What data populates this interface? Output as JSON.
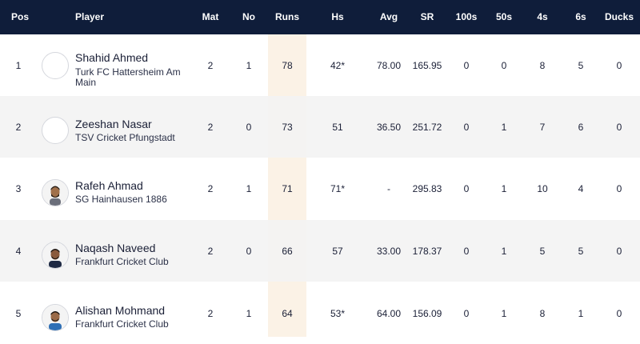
{
  "headers": {
    "pos": "Pos",
    "player": "Player",
    "mat": "Mat",
    "no": "No",
    "runs": "Runs",
    "hs": "Hs",
    "avg": "Avg",
    "sr": "SR",
    "hundreds": "100s",
    "fifties": "50s",
    "fours": "4s",
    "sixes": "6s",
    "ducks": "Ducks"
  },
  "rows": [
    {
      "pos": "1",
      "name": "Shahid Ahmed",
      "team": "Turk FC Hattersheim Am Main",
      "mat": "2",
      "no": "1",
      "runs": "78",
      "hs": "42*",
      "avg": "78.00",
      "sr": "165.95",
      "hundreds": "0",
      "fifties": "0",
      "fours": "8",
      "sixes": "5",
      "ducks": "0",
      "avatar": "placeholder-avatar-icon"
    },
    {
      "pos": "2",
      "name": "Zeeshan Nasar",
      "team": "TSV Cricket Pfungstadt",
      "mat": "2",
      "no": "0",
      "runs": "73",
      "hs": "51",
      "avg": "36.50",
      "sr": "251.72",
      "hundreds": "0",
      "fifties": "1",
      "fours": "7",
      "sixes": "6",
      "ducks": "0",
      "avatar": "placeholder-avatar-icon"
    },
    {
      "pos": "3",
      "name": "Rafeh Ahmad",
      "team": "SG Hainhausen 1886",
      "mat": "2",
      "no": "1",
      "runs": "71",
      "hs": "71*",
      "avg": "-",
      "sr": "295.83",
      "hundreds": "0",
      "fifties": "1",
      "fours": "10",
      "sixes": "4",
      "ducks": "0",
      "avatar": "player-photo-icon"
    },
    {
      "pos": "4",
      "name": "Naqash Naveed",
      "team": "Frankfurt Cricket Club",
      "mat": "2",
      "no": "0",
      "runs": "66",
      "hs": "57",
      "avg": "33.00",
      "sr": "178.37",
      "hundreds": "0",
      "fifties": "1",
      "fours": "5",
      "sixes": "5",
      "ducks": "0",
      "avatar": "player-photo-icon"
    },
    {
      "pos": "5",
      "name": "Alishan Mohmand",
      "team": "Frankfurt Cricket Club",
      "mat": "2",
      "no": "1",
      "runs": "64",
      "hs": "53*",
      "avg": "64.00",
      "sr": "156.09",
      "hundreds": "0",
      "fifties": "1",
      "fours": "8",
      "sixes": "1",
      "ducks": "0",
      "avatar": "player-photo-icon"
    }
  ],
  "colors": {
    "header_bg": "#0f1d3a",
    "header_text": "#ffffff",
    "runs_highlight": "#fbf2e6",
    "alt_row": "#f3f3f3"
  }
}
